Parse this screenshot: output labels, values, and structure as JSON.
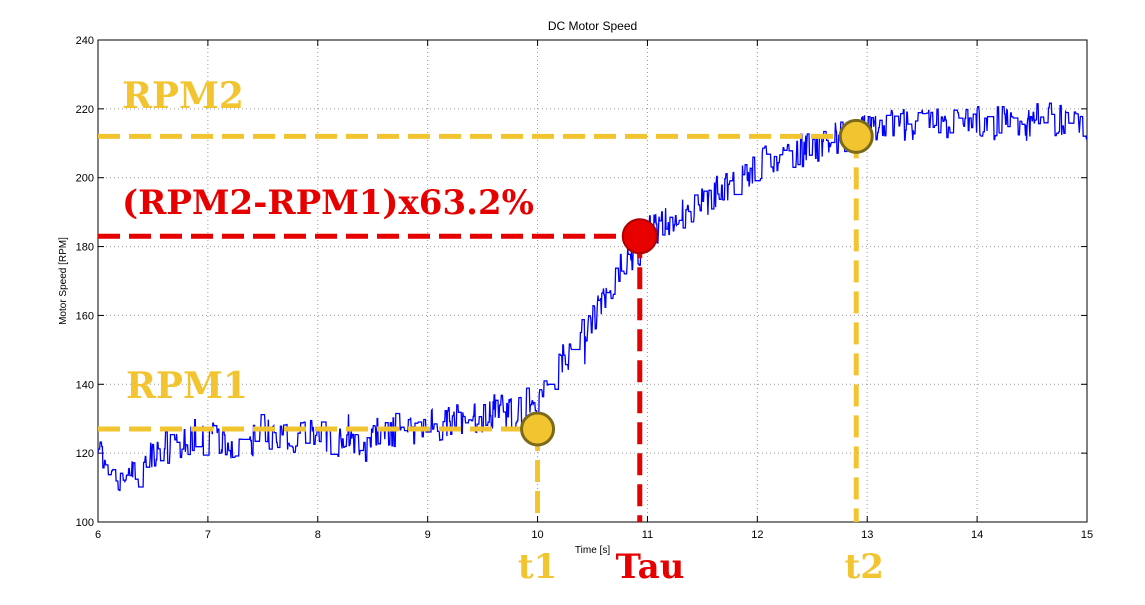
{
  "chart_data": {
    "type": "line",
    "title": "DC Motor Speed",
    "xlabel": "Time [s]",
    "ylabel": "Motor Speed [RPM]",
    "xlim": [
      6,
      15
    ],
    "ylim": [
      100,
      240
    ],
    "xticks": [
      6,
      7,
      8,
      9,
      10,
      11,
      12,
      13,
      14,
      15
    ],
    "yticks": [
      100,
      120,
      140,
      160,
      180,
      200,
      220,
      240
    ],
    "grid": true,
    "line_color": "#0000ff",
    "series": [
      {
        "x": [
          6.0,
          6.1,
          6.2,
          6.3,
          6.4,
          6.5,
          6.6,
          6.7,
          6.8,
          6.9,
          7.0,
          7.2,
          7.4,
          7.6,
          7.8,
          8.0,
          8.2,
          8.4,
          8.6,
          8.8,
          9.0,
          9.2,
          9.4,
          9.6,
          9.8,
          9.9,
          10.0,
          10.1,
          10.2,
          10.3,
          10.4,
          10.5,
          10.6,
          10.7,
          10.8,
          10.9,
          11.0,
          11.1,
          11.2,
          11.3,
          11.4,
          11.5,
          11.6,
          11.7,
          11.8,
          11.9,
          12.0,
          12.1,
          12.2,
          12.3,
          12.4,
          12.5,
          12.6,
          12.7,
          12.8,
          12.9,
          13.0,
          13.2,
          13.4,
          13.6,
          13.8,
          14.0,
          14.2,
          14.4,
          14.6,
          14.8,
          15.0
        ],
        "values": [
          120,
          117,
          111,
          113,
          116,
          120,
          122,
          121,
          124,
          125,
          124,
          123,
          124,
          125,
          124,
          125,
          124,
          125,
          126,
          127,
          128,
          129,
          130,
          131,
          132,
          134,
          133,
          138,
          145,
          150,
          155,
          158,
          164,
          170,
          175,
          178,
          184,
          185,
          187,
          189,
          191,
          193,
          195,
          197,
          199,
          201,
          203,
          205,
          207,
          208,
          208,
          210,
          209,
          211,
          212,
          212,
          214,
          215,
          215,
          216,
          215,
          216,
          216,
          216,
          217,
          216,
          216
        ]
      }
    ],
    "annotations": {
      "rpm1_label": "RPM1",
      "rpm2_label": "RPM2",
      "tau_eq_label": "(RPM2-RPM1)x63.2%",
      "t1_label": "t1",
      "t2_label": "t2",
      "tau_label": "Tau",
      "rpm1_value": 127,
      "rpm2_value": 212,
      "tau_rpm_value": 183,
      "t1_value": 10.0,
      "tau_value": 10.93,
      "t2_value": 12.9,
      "yellow": "#f2c530",
      "red": "#e60000",
      "point_outline_yellow": "#7a6a1a",
      "point_outline_red": "#b00000"
    }
  }
}
